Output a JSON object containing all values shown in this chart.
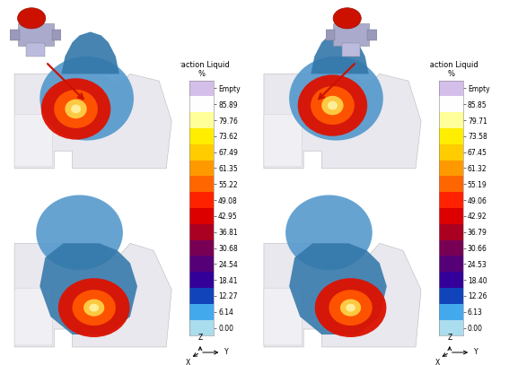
{
  "background_color": "#ffffff",
  "colorbar_left": {
    "title_line1": "Fraction Liquid",
    "title_line2": "%",
    "labels": [
      "Empty",
      "85.89",
      "79.76",
      "73.62",
      "67.49",
      "61.35",
      "55.22",
      "49.08",
      "42.95",
      "36.81",
      "30.68",
      "24.54",
      "18.41",
      "12.27",
      "6.14",
      "0.00"
    ],
    "colors": [
      "#d4bfea",
      "#fefefe",
      "#ffff99",
      "#ffee00",
      "#ffcc00",
      "#ff9900",
      "#ff6600",
      "#ff2200",
      "#dd0000",
      "#aa0022",
      "#770055",
      "#550077",
      "#330099",
      "#1144bb",
      "#44aaee",
      "#aaddee"
    ]
  },
  "colorbar_right": {
    "title_line1": "Fraction Liquid",
    "title_line2": "%",
    "labels": [
      "Empty",
      "85.85",
      "79.71",
      "73.58",
      "67.45",
      "61.32",
      "55.19",
      "49.06",
      "42.92",
      "36.79",
      "30.66",
      "24.53",
      "18.40",
      "12.26",
      "6.13",
      "0.00"
    ],
    "colors": [
      "#d4bfea",
      "#fefefe",
      "#ffff99",
      "#ffee00",
      "#ffcc00",
      "#ff9900",
      "#ff6600",
      "#ff2200",
      "#dd0000",
      "#aa0022",
      "#770055",
      "#550077",
      "#330099",
      "#1144bb",
      "#44aaee",
      "#aaddee"
    ]
  },
  "font_size_title": 6.0,
  "font_size_tick": 5.5,
  "arrow_color": "#cc1100",
  "blue_body": "#5599cc",
  "blue_dark": "#3377aa",
  "blue_light": "#77bbdd",
  "white_mold": "#e8e8ee",
  "hot_orange": "#ff5500",
  "hot_red": "#dd1100",
  "hot_yellow": "#ffcc44",
  "hot_center": "#ffee99"
}
